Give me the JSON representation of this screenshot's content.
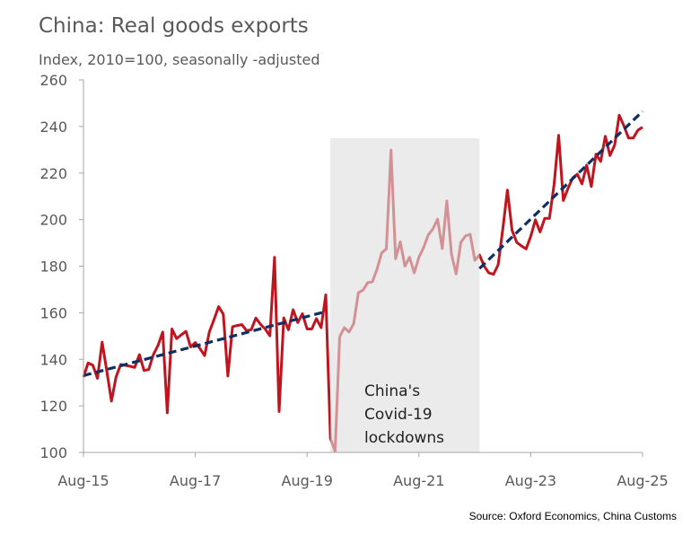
{
  "chart_data": {
    "type": "line",
    "title": "China: Real goods exports",
    "subtitle": "Index, 2010=100, seasonally -adjusted",
    "source": "Source: Oxford Economics, China Customs",
    "xlabel": "",
    "ylabel": "",
    "ylim": [
      100,
      260
    ],
    "yticks": [
      100,
      120,
      140,
      160,
      180,
      200,
      220,
      240,
      260
    ],
    "xticks": [
      "Aug-15",
      "Aug-17",
      "Aug-19",
      "Aug-21",
      "Aug-23",
      "Aug-25"
    ],
    "xrange": [
      "2015-08",
      "2025-08"
    ],
    "grid": false,
    "colors": {
      "series": "#c0141f",
      "trend": "#0d2f63",
      "shade": "#e6e6e6",
      "text": "#595959"
    },
    "x": [
      "2015-08",
      "2015-09",
      "2015-10",
      "2015-11",
      "2015-12",
      "2016-01",
      "2016-02",
      "2016-03",
      "2016-04",
      "2016-05",
      "2016-06",
      "2016-07",
      "2016-08",
      "2016-09",
      "2016-10",
      "2016-11",
      "2016-12",
      "2017-01",
      "2017-02",
      "2017-03",
      "2017-04",
      "2017-05",
      "2017-06",
      "2017-07",
      "2017-08",
      "2017-09",
      "2017-10",
      "2017-11",
      "2017-12",
      "2018-01",
      "2018-02",
      "2018-03",
      "2018-04",
      "2018-05",
      "2018-06",
      "2018-07",
      "2018-08",
      "2018-09",
      "2018-10",
      "2018-11",
      "2018-12",
      "2019-01",
      "2019-02",
      "2019-03",
      "2019-04",
      "2019-05",
      "2019-06",
      "2019-07",
      "2019-08",
      "2019-09",
      "2019-10",
      "2019-11",
      "2019-12",
      "2020-01",
      "2020-02",
      "2020-03",
      "2020-04",
      "2020-05",
      "2020-06",
      "2020-07",
      "2020-08",
      "2020-09",
      "2020-10",
      "2020-11",
      "2020-12",
      "2021-01",
      "2021-02",
      "2021-03",
      "2021-04",
      "2021-05",
      "2021-06",
      "2021-07",
      "2021-08",
      "2021-09",
      "2021-10",
      "2021-11",
      "2021-12",
      "2022-01",
      "2022-02",
      "2022-03",
      "2022-04",
      "2022-05",
      "2022-06",
      "2022-07",
      "2022-08",
      "2022-09",
      "2022-10",
      "2022-11",
      "2022-12",
      "2023-01",
      "2023-02",
      "2023-03",
      "2023-04",
      "2023-05",
      "2023-06",
      "2023-07",
      "2023-08",
      "2023-09",
      "2023-10",
      "2023-11",
      "2023-12",
      "2024-01",
      "2024-02",
      "2024-03",
      "2024-04",
      "2024-05",
      "2024-06",
      "2024-07",
      "2024-08",
      "2024-09",
      "2024-10",
      "2024-11",
      "2024-12",
      "2025-01",
      "2025-02",
      "2025-03",
      "2025-04",
      "2025-05",
      "2025-06",
      "2025-07",
      "2025-08"
    ],
    "series": [
      {
        "values": [
          132.4,
          138.4,
          137.5,
          131.8,
          147.4,
          135,
          122,
          132.4,
          137.8,
          137.4,
          137,
          136.5,
          142,
          135.2,
          135.6,
          142,
          146,
          151.7,
          117,
          153,
          148.9,
          150.5,
          152,
          145.3,
          147.2,
          144.6,
          141.6,
          151.7,
          157,
          162.6,
          159.4,
          132.8,
          154,
          154.5,
          154.9,
          152.3,
          152.7,
          157.7,
          155,
          153,
          150.1,
          183.8,
          117.6,
          157.8,
          152.7,
          161.3,
          155.8,
          159.6,
          153,
          153,
          157.5,
          153.6,
          167.7,
          106,
          100.4,
          149.7,
          153.6,
          151.7,
          155.3,
          168.6,
          169.7,
          172.9,
          173.3,
          178.7,
          185.7,
          187.4,
          229.8,
          183.2,
          190.5,
          180,
          183.8,
          177.1,
          183.8,
          188,
          193.4,
          196,
          200.2,
          187.6,
          208,
          185.1,
          176.7,
          190.2,
          193,
          193.7,
          182.5,
          184.8,
          180,
          177.1,
          176.5,
          180.6,
          196,
          212.7,
          195.4,
          190.2,
          188.7,
          187.4,
          192.8,
          199.9,
          194.7,
          200.5,
          200.5,
          215,
          236.2,
          208.2,
          213.4,
          217.9,
          219.5,
          215.3,
          223.4,
          214.2,
          228.1,
          225,
          235.8,
          227.5,
          232,
          244.8,
          240.3,
          235,
          235,
          238.4,
          239.7
        ]
      }
    ],
    "trendlines": [
      {
        "style": "dashed",
        "from": [
          "2015-08",
          133
        ],
        "to": [
          "2019-12",
          160.5
        ]
      },
      {
        "style": "dashed",
        "from": [
          "2022-09",
          179
        ],
        "to": [
          "2025-08",
          246.5
        ]
      }
    ],
    "shaded_region": {
      "from": "2020-01",
      "to": "2022-09",
      "ymax": 235
    },
    "annotation": [
      "China's",
      "Covid-19",
      "lockdowns"
    ]
  }
}
